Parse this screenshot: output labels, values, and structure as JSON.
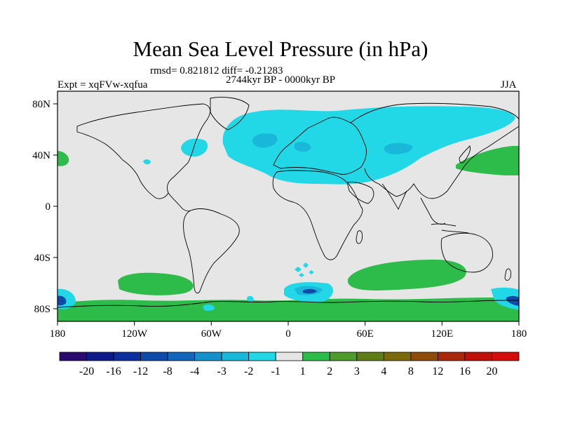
{
  "title": "Mean Sea Level Pressure (in hPa)",
  "stats": "rmsd= 0.821812 diff= -0.21283",
  "period": "2744kyr BP - 0000kyr BP",
  "expt": "Expt = xqFVw-xqfua",
  "season": "JJA",
  "axes": {
    "lon_ticks": [
      "180",
      "120W",
      "60W",
      "0",
      "60E",
      "120E",
      "180"
    ],
    "lat_ticks": [
      "80N",
      "40N",
      "0",
      "40S",
      "80S"
    ]
  },
  "colorbar": {
    "labels": [
      "-20",
      "-16",
      "-12",
      "-8",
      "-4",
      "-3",
      "-2",
      "-1",
      "1",
      "2",
      "3",
      "4",
      "8",
      "12",
      "16",
      "20"
    ],
    "colors": [
      "#2a0a6e",
      "#0e1a8a",
      "#0d2f9e",
      "#0e4aa8",
      "#1166bb",
      "#1490cc",
      "#19b8da",
      "#22d8e6",
      "#e6e6e6",
      "#2dbb4a",
      "#4e9a2c",
      "#5f7d16",
      "#7a6a0c",
      "#8e4b0a",
      "#a8280a",
      "#bf100a",
      "#d40c0c"
    ]
  },
  "colors": {
    "land_bg": "#e6e6e6",
    "neg_light": "#22d8e6",
    "neg_mid": "#19b8da",
    "neg_dark": "#1490cc",
    "neg_deep": "#0e4aa8",
    "pos_green": "#2dbb4a"
  }
}
